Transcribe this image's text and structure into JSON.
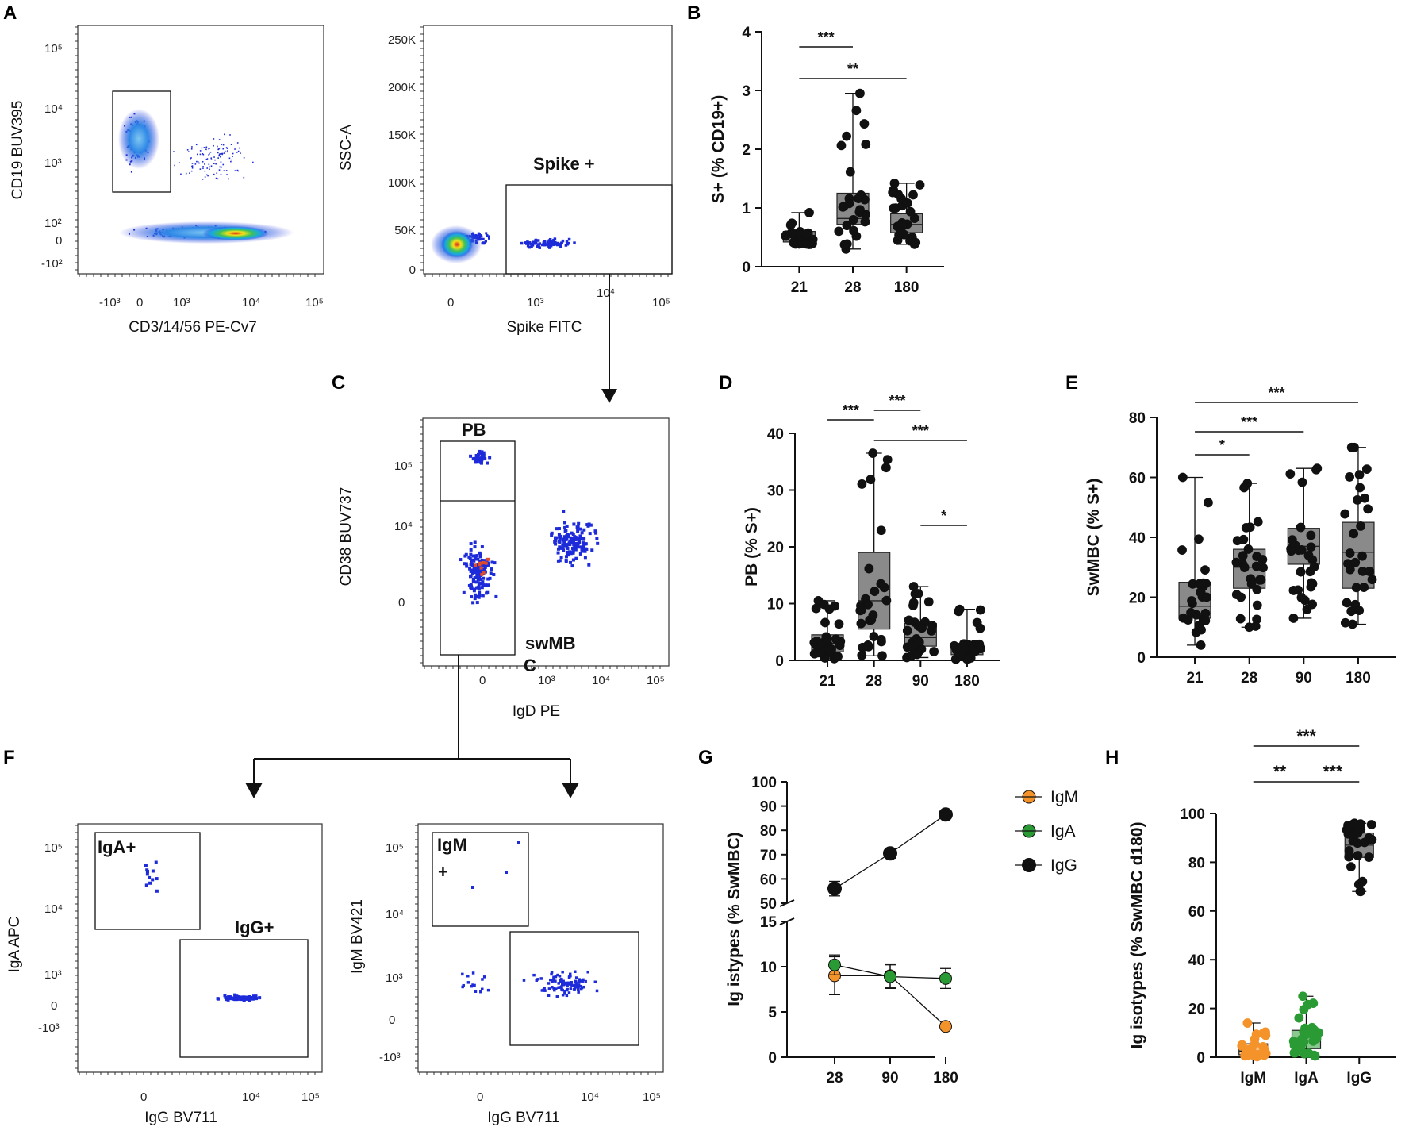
{
  "chart_data": [
    {
      "id": "A",
      "panel": "A",
      "type": "scatter",
      "subtype": "flow-cytometry-pair",
      "plots": [
        {
          "xlabel": "CD3/14/56 PE-Cv7",
          "ylabel": "CD19 BUV395",
          "x_ticks": [
            "-10³",
            "0",
            "10³",
            "10⁴",
            "10⁵"
          ],
          "y_ticks": [
            "10⁵",
            "10⁴",
            "10³",
            "10²",
            "0",
            "-10²"
          ],
          "gate_label": ""
        },
        {
          "xlabel": "Spike FITC",
          "ylabel": "SSC-A",
          "x_ticks": [
            "0",
            "10³",
            "10⁴",
            "10⁵"
          ],
          "y_ticks": [
            "250K",
            "200K",
            "150K",
            "100K",
            "50K",
            "0"
          ],
          "gate_label": "Spike +"
        }
      ]
    },
    {
      "id": "B",
      "panel": "B",
      "type": "box",
      "categories": [
        "21",
        "28",
        "180"
      ],
      "ylabel": "S+ (% CD19+)",
      "ylim": [
        0,
        4
      ],
      "yticks": [
        "0",
        "1",
        "2",
        "3",
        "4"
      ],
      "boxes": [
        {
          "min": 0.38,
          "q1": 0.42,
          "median": 0.5,
          "q3": 0.6,
          "max": 0.92
        },
        {
          "min": 0.3,
          "q1": 0.72,
          "median": 0.82,
          "q3": 1.25,
          "max": 2.95
        },
        {
          "min": 0.38,
          "q1": 0.58,
          "median": 0.72,
          "q3": 0.9,
          "max": 1.42
        }
      ],
      "significance": [
        {
          "from": "21",
          "to": "28",
          "label": "***"
        },
        {
          "from": "21",
          "to": "180",
          "label": "**"
        }
      ]
    },
    {
      "id": "C",
      "panel": "C",
      "type": "scatter",
      "subtype": "flow-cytometry",
      "xlabel": "IgD PE",
      "ylabel": "CD38 BUV737",
      "x_ticks": [
        "0",
        "10³",
        "10⁴",
        "10⁵"
      ],
      "y_ticks": [
        "10⁵",
        "10⁴",
        "0"
      ],
      "gates": [
        "PB",
        "swMB",
        "C"
      ]
    },
    {
      "id": "D",
      "panel": "D",
      "type": "box",
      "categories": [
        "21",
        "28",
        "90",
        "180"
      ],
      "ylabel": "PB (% S+)",
      "ylim": [
        0,
        40
      ],
      "yticks": [
        "0",
        "10",
        "20",
        "30",
        "40"
      ],
      "boxes": [
        {
          "min": 0.3,
          "q1": 1.5,
          "median": 3.0,
          "q3": 4.5,
          "max": 10.5
        },
        {
          "min": 0.8,
          "q1": 5.5,
          "median": 10.5,
          "q3": 19.0,
          "max": 36.5
        },
        {
          "min": 0.5,
          "q1": 2.5,
          "median": 4.0,
          "q3": 6.5,
          "max": 13.0
        },
        {
          "min": 0.2,
          "q1": 1.0,
          "median": 2.0,
          "q3": 3.0,
          "max": 9.0
        }
      ],
      "significance": [
        {
          "from": "21",
          "to": "28",
          "label": "***"
        },
        {
          "from": "28",
          "to": "90",
          "label": "***"
        },
        {
          "from": "28",
          "to": "180",
          "label": "***"
        },
        {
          "from": "90",
          "to": "180",
          "label": "*"
        }
      ]
    },
    {
      "id": "E",
      "panel": "E",
      "type": "box",
      "categories": [
        "21",
        "28",
        "90",
        "180"
      ],
      "ylabel": "SwMBC (% S+)",
      "ylim": [
        0,
        80
      ],
      "yticks": [
        "0",
        "20",
        "40",
        "60",
        "80"
      ],
      "boxes": [
        {
          "min": 4,
          "q1": 13,
          "median": 17,
          "q3": 25,
          "max": 60
        },
        {
          "min": 10,
          "q1": 23,
          "median": 30,
          "q3": 36,
          "max": 58
        },
        {
          "min": 13,
          "q1": 31,
          "median": 37,
          "q3": 43,
          "max": 63
        },
        {
          "min": 11,
          "q1": 23,
          "median": 35,
          "q3": 45,
          "max": 70
        }
      ],
      "significance": [
        {
          "from": "21",
          "to": "28",
          "label": "*"
        },
        {
          "from": "21",
          "to": "90",
          "label": "***"
        },
        {
          "from": "21",
          "to": "180",
          "label": "***"
        }
      ]
    },
    {
      "id": "F",
      "panel": "F",
      "type": "scatter",
      "subtype": "flow-cytometry-pair",
      "plots": [
        {
          "xlabel": "IgG BV711",
          "ylabel": "IgA APC",
          "x_ticks": [
            "0",
            "10⁴",
            "10⁵"
          ],
          "y_ticks": [
            "10⁵",
            "10⁴",
            "10³",
            "0",
            "-10³"
          ],
          "gates": [
            "IgA+",
            "IgG+"
          ]
        },
        {
          "xlabel": "IgG BV711",
          "ylabel": "IgM BV421",
          "x_ticks": [
            "0",
            "10⁴",
            "10⁵"
          ],
          "y_ticks": [
            "10⁵",
            "10⁴",
            "10³",
            "0",
            "-10³"
          ],
          "gates": [
            "IgM",
            "+"
          ]
        }
      ]
    },
    {
      "id": "G",
      "panel": "G",
      "type": "line",
      "x": [
        "28",
        "90",
        "180"
      ],
      "ylabel": "Ig istypes (% SwMBC)",
      "ylim": [
        0,
        100
      ],
      "axis_break": [
        15,
        50
      ],
      "upper_ticks": [
        "50",
        "60",
        "70",
        "80",
        "90",
        "100"
      ],
      "lower_ticks": [
        "0",
        "5",
        "10",
        "15"
      ],
      "series": [
        {
          "name": "IgM",
          "color": "#f5932b",
          "values": [
            9.0,
            9.0,
            3.4
          ],
          "err": [
            2.1,
            1.3,
            0.3
          ]
        },
        {
          "name": "IgA",
          "color": "#2a9a35",
          "values": [
            10.2,
            8.9,
            8.7
          ],
          "err": [
            1.1,
            1.3,
            1.1
          ]
        },
        {
          "name": "IgG",
          "color": "#111111",
          "values": [
            56,
            70.5,
            86.5
          ],
          "err": [
            3.0,
            2.0,
            1.0
          ]
        }
      ]
    },
    {
      "id": "H",
      "panel": "H",
      "type": "box",
      "categories": [
        "IgM",
        "IgA",
        "IgG"
      ],
      "ylabel": "Ig isotypes (% SwMBC d180)",
      "ylim": [
        0,
        100
      ],
      "yticks": [
        "0",
        "20",
        "40",
        "60",
        "80",
        "100"
      ],
      "colors": [
        "#f5932b",
        "#2a9a35",
        "#111111"
      ],
      "boxes": [
        {
          "min": 0.2,
          "q1": 1.0,
          "median": 2.5,
          "q3": 5.5,
          "max": 14
        },
        {
          "min": 0.5,
          "q1": 3.5,
          "median": 7.0,
          "q3": 11,
          "max": 25
        },
        {
          "min": 68,
          "q1": 82,
          "median": 87,
          "q3": 92,
          "max": 96
        }
      ],
      "significance": [
        {
          "from": "IgM",
          "to": "IgA",
          "label": "**"
        },
        {
          "from": "IgA",
          "to": "IgG",
          "label": "***"
        },
        {
          "from": "IgM",
          "to": "IgG",
          "label": "***"
        }
      ]
    }
  ]
}
